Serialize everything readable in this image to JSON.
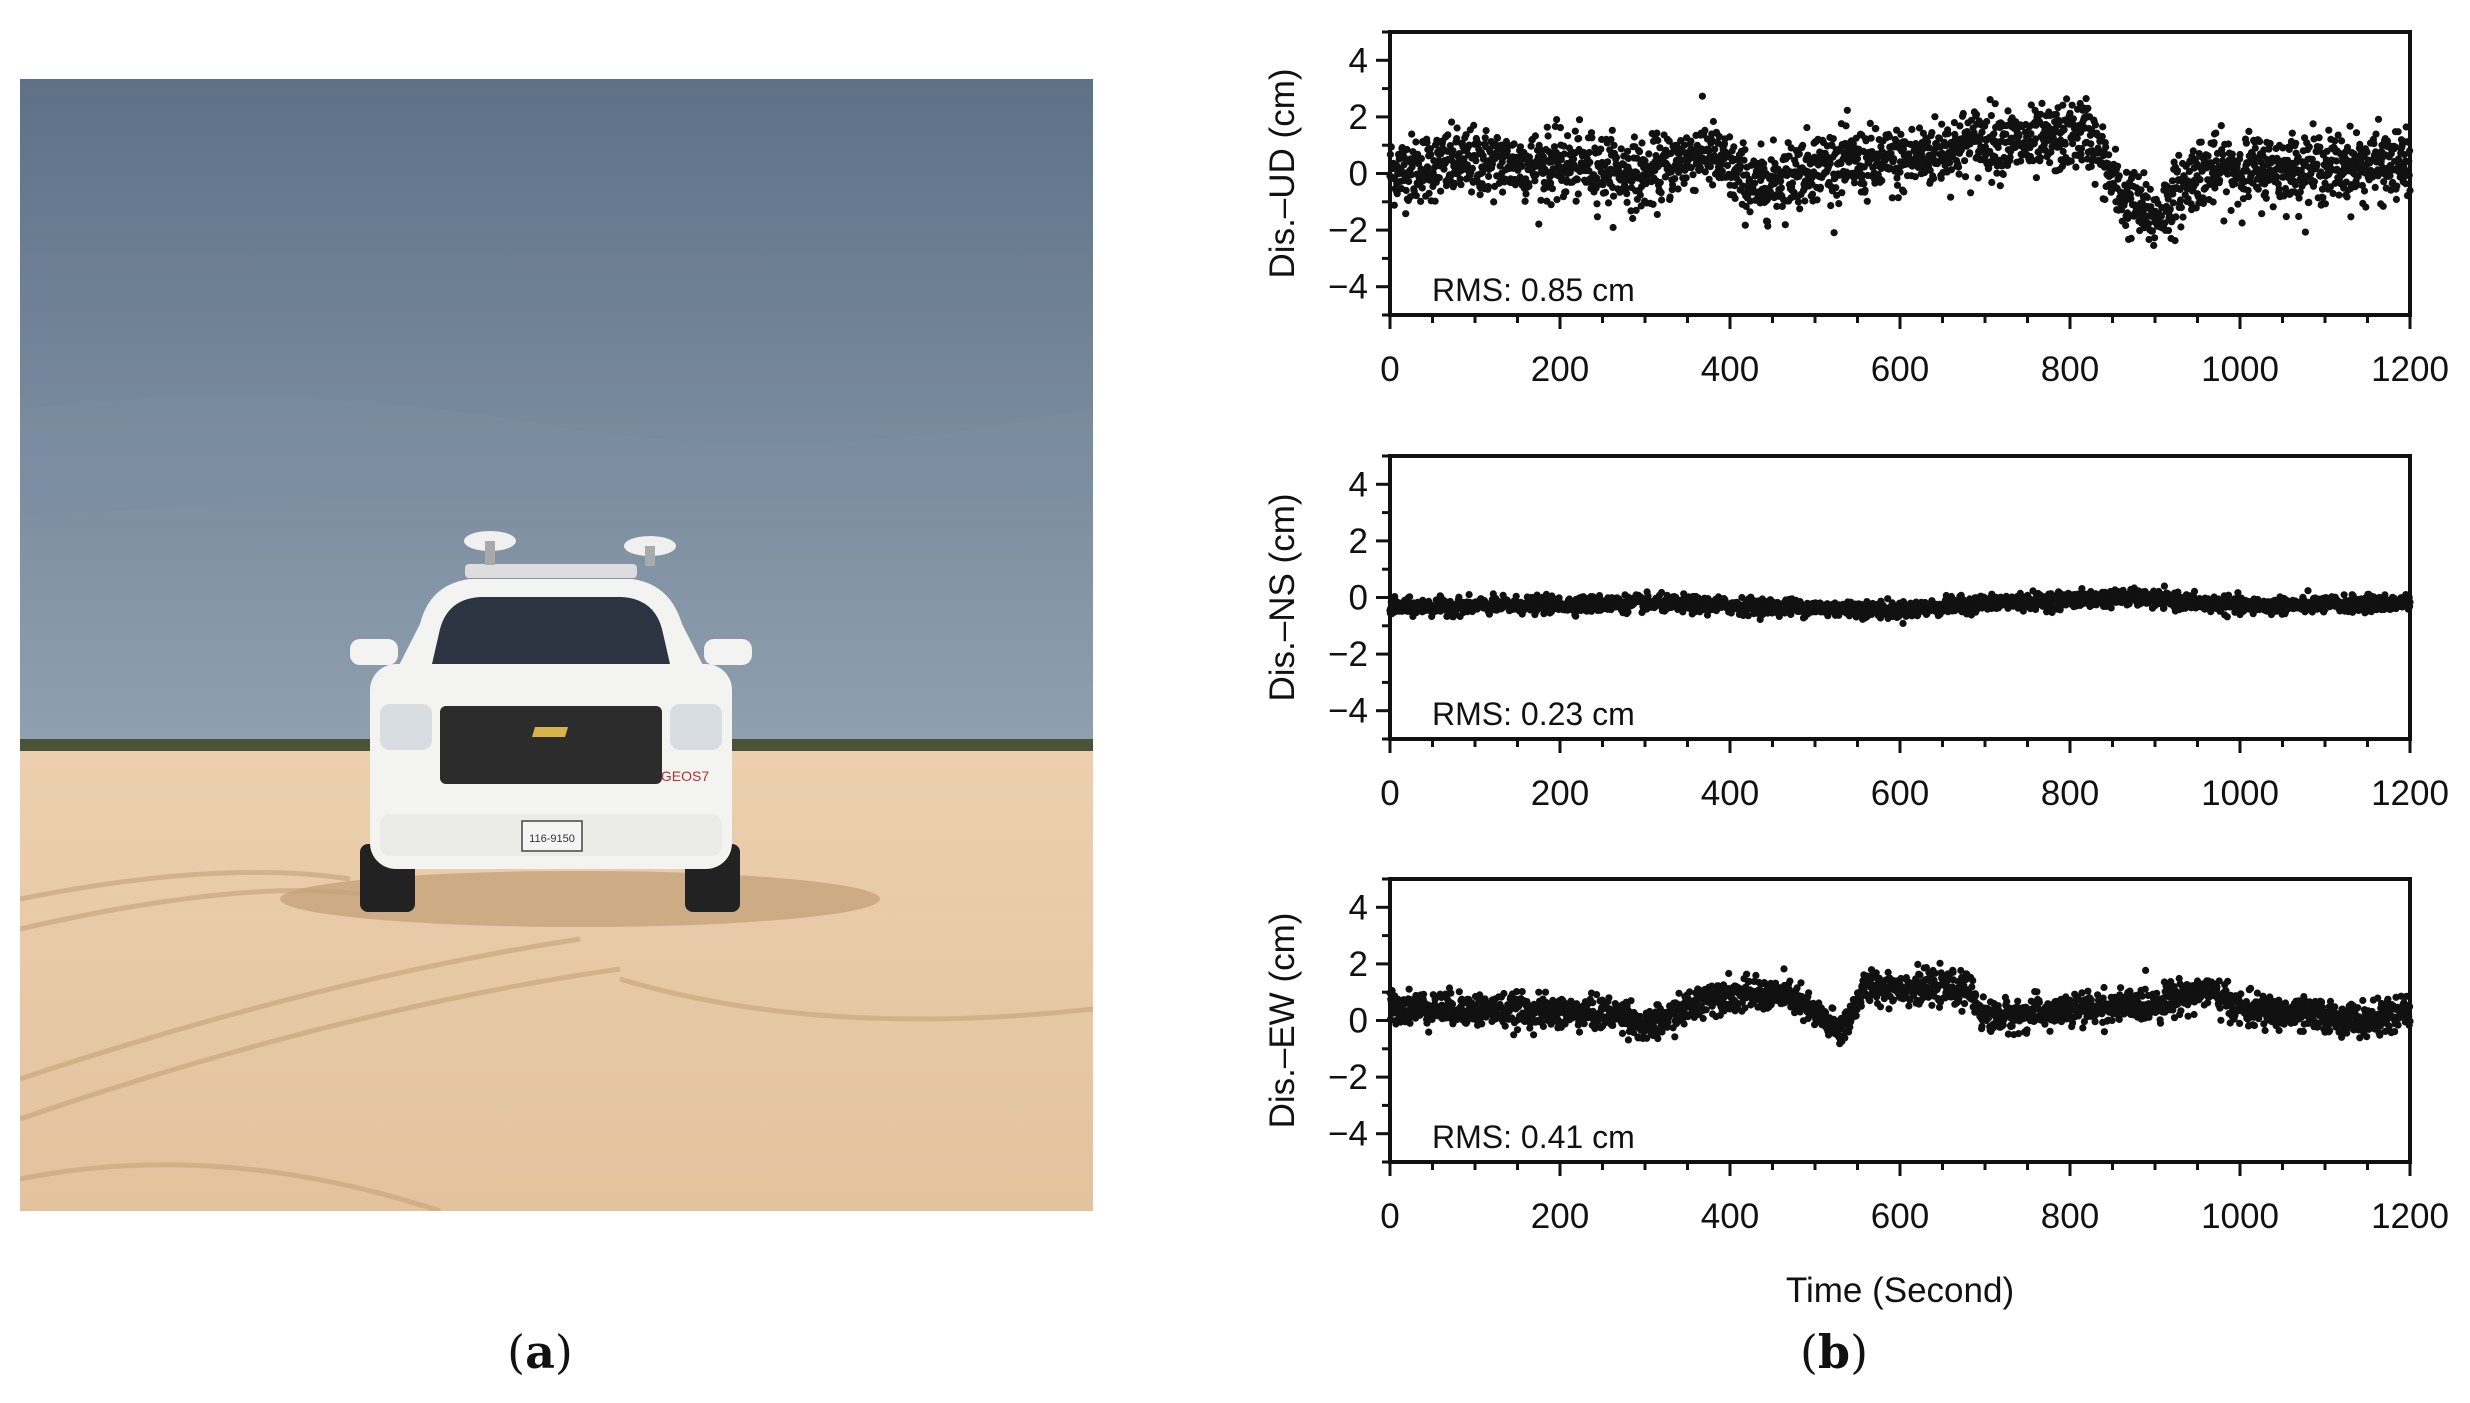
{
  "labels": {
    "a": "a",
    "b": "b"
  },
  "photo": {
    "sky_top": "#5f7187",
    "sky_bottom": "#8fa0b0",
    "sand": "#e3c39e",
    "vehicle_color": "#f3f3f1",
    "plate_text": "116-9150",
    "door_text": "GEOS7"
  },
  "chart_data": [
    {
      "type": "scatter",
      "ylabel": "Dis.–UD (cm)",
      "xlabel": "",
      "annotation": "RMS: 0.85 cm",
      "xlim": [
        0,
        1200
      ],
      "ylim": [
        -5,
        5
      ],
      "xticks": [
        0,
        200,
        400,
        600,
        800,
        1000,
        1200
      ],
      "yticks": [
        -4,
        -2,
        0,
        2,
        4
      ],
      "noise_cm": 0.6,
      "trend": [
        [
          0,
          0.1
        ],
        [
          100,
          0.4
        ],
        [
          250,
          0.2
        ],
        [
          300,
          -0.1
        ],
        [
          370,
          0.8
        ],
        [
          430,
          -0.5
        ],
        [
          500,
          0.3
        ],
        [
          600,
          0.4
        ],
        [
          700,
          1.2
        ],
        [
          760,
          1.0
        ],
        [
          820,
          1.5
        ],
        [
          860,
          -0.8
        ],
        [
          900,
          -1.6
        ],
        [
          950,
          0.1
        ],
        [
          1100,
          0.2
        ],
        [
          1200,
          0.3
        ]
      ]
    },
    {
      "type": "scatter",
      "ylabel": "Dis.–NS (cm)",
      "xlabel": "",
      "annotation": "RMS: 0.23 cm",
      "xlim": [
        0,
        1200
      ],
      "ylim": [
        -5,
        5
      ],
      "xticks": [
        0,
        200,
        400,
        600,
        800,
        1000,
        1200
      ],
      "yticks": [
        -4,
        -2,
        0,
        2,
        4
      ],
      "noise_cm": 0.14,
      "trend": [
        [
          0,
          -0.35
        ],
        [
          300,
          -0.2
        ],
        [
          600,
          -0.45
        ],
        [
          700,
          -0.2
        ],
        [
          870,
          0.0
        ],
        [
          1000,
          -0.3
        ],
        [
          1200,
          -0.2
        ]
      ]
    },
    {
      "type": "scatter",
      "ylabel": "Dis.–EW (cm)",
      "xlabel": "Time (Second)",
      "annotation": "RMS: 0.41 cm",
      "xlim": [
        0,
        1200
      ],
      "ylim": [
        -5,
        5
      ],
      "xticks": [
        0,
        200,
        400,
        600,
        800,
        1000,
        1200
      ],
      "yticks": [
        -4,
        -2,
        0,
        2,
        4
      ],
      "noise_cm": 0.28,
      "trend": [
        [
          0,
          0.5
        ],
        [
          280,
          0.2
        ],
        [
          300,
          -0.3
        ],
        [
          380,
          0.9
        ],
        [
          470,
          0.9
        ],
        [
          530,
          -0.4
        ],
        [
          560,
          1.2
        ],
        [
          680,
          1.1
        ],
        [
          700,
          0.1
        ],
        [
          900,
          0.6
        ],
        [
          960,
          1.1
        ],
        [
          1000,
          0.4
        ],
        [
          1150,
          0.0
        ],
        [
          1200,
          0.3
        ]
      ]
    }
  ]
}
